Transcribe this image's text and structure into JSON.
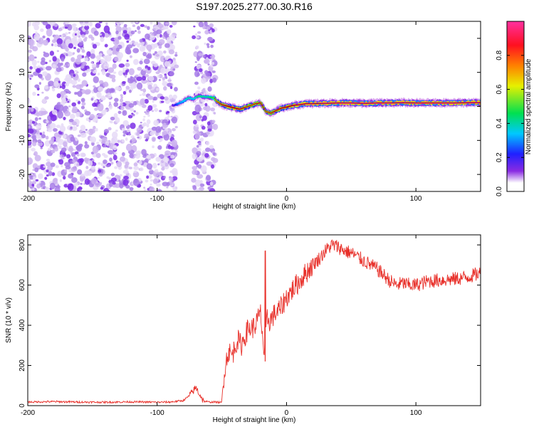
{
  "figure_title": "S197.2025.277.00.30.R16",
  "chart_data": [
    {
      "type": "heatmap",
      "name": "spectrogram",
      "xlabel": "Height of straight line (km)",
      "ylabel": "Frequency (Hz)",
      "xlim": [
        -200,
        150
      ],
      "ylim": [
        -25,
        25
      ],
      "xticks": [
        -200,
        -100,
        0,
        100
      ],
      "yticks": [
        -20,
        -10,
        0,
        10,
        20
      ],
      "xtick_labels": [
        "-200",
        "-100",
        "0",
        "100"
      ],
      "ytick_labels": [
        "-20",
        "-10",
        "0",
        "10",
        "20"
      ],
      "noise_regions_km": [
        [
          -200,
          -85
        ],
        [
          -72,
          -55
        ]
      ],
      "signal_trace": {
        "x": [
          -88,
          -84,
          -80,
          -76,
          -72,
          -68,
          -62,
          -56,
          -54,
          -50,
          -45,
          -40,
          -36,
          -32,
          -28,
          -24,
          -20,
          -16,
          -12,
          -8,
          -4,
          0,
          5,
          10,
          15,
          20,
          30,
          40,
          50,
          60,
          70,
          80,
          90,
          100,
          110,
          120,
          130,
          140,
          150
        ],
        "y": [
          0.2,
          0.8,
          1.5,
          2.5,
          2.2,
          3.0,
          2.8,
          2.5,
          1.5,
          0.5,
          0.0,
          -0.5,
          -0.8,
          -0.3,
          0.2,
          0.8,
          1.0,
          -1.5,
          -2.0,
          -1.2,
          -0.5,
          -0.2,
          0.3,
          0.5,
          0.8,
          0.8,
          0.9,
          1.0,
          1.0,
          0.9,
          1.0,
          1.0,
          1.1,
          1.0,
          1.0,
          1.0,
          1.0,
          1.1,
          1.1
        ],
        "amplitude": [
          0.25,
          0.4,
          0.45,
          0.5,
          0.45,
          0.55,
          0.5,
          0.6,
          0.75,
          0.85,
          0.9,
          0.9,
          0.88,
          0.85,
          0.8,
          0.82,
          0.85,
          0.8,
          0.82,
          0.85,
          0.88,
          0.9,
          0.92,
          0.95,
          0.95,
          0.97,
          0.98,
          0.98,
          0.99,
          0.98,
          0.98,
          0.99,
          0.98,
          0.98,
          0.97,
          0.98,
          0.98,
          0.97,
          0.98
        ]
      },
      "colorbar": {
        "label": "Normalized spectral amplitude",
        "range": [
          0.0,
          1.0
        ],
        "ticks": [
          0.0,
          0.2,
          0.4,
          0.6,
          0.8
        ],
        "tick_labels": [
          "0.0",
          "0.2",
          "0.4",
          "0.6",
          "0.8"
        ],
        "colors": [
          "#ffffff",
          "#e6b8f0",
          "#8a2be2",
          "#2020ff",
          "#00c8ff",
          "#00e050",
          "#e6f000",
          "#ff8000",
          "#ff1020",
          "#ff30a0"
        ]
      }
    },
    {
      "type": "line",
      "name": "snr",
      "xlabel": "Height of straight line (km)",
      "ylabel": "SNR (10 * v/v)",
      "xlim": [
        -200,
        150
      ],
      "ylim": [
        0,
        850
      ],
      "xticks": [
        -200,
        -100,
        0,
        100
      ],
      "yticks": [
        0,
        200,
        400,
        600,
        800
      ],
      "xtick_labels": [
        "-200",
        "-100",
        "0",
        "100"
      ],
      "ytick_labels": [
        "0",
        "200",
        "400",
        "600",
        "800"
      ],
      "color": "#e8302a",
      "series": [
        {
          "name": "SNR",
          "x": [
            -200,
            -180,
            -160,
            -140,
            -120,
            -100,
            -90,
            -80,
            -75,
            -70,
            -67,
            -64,
            -60,
            -55,
            -50,
            -48,
            -45,
            -42,
            -38,
            -35,
            -30,
            -25,
            -20,
            -17,
            -15,
            -13,
            -10,
            -5,
            0,
            5,
            10,
            15,
            20,
            25,
            30,
            35,
            40,
            45,
            50,
            55,
            60,
            65,
            70,
            75,
            80,
            85,
            90,
            95,
            100,
            110,
            120,
            130,
            140,
            150
          ],
          "y": [
            18,
            20,
            18,
            17,
            19,
            17,
            18,
            25,
            50,
            90,
            55,
            22,
            18,
            18,
            15,
            180,
            270,
            250,
            330,
            300,
            380,
            390,
            460,
            230,
            440,
            420,
            450,
            480,
            540,
            580,
            620,
            660,
            700,
            730,
            770,
            800,
            790,
            770,
            760,
            740,
            720,
            700,
            680,
            650,
            620,
            600,
            610,
            600,
            600,
            620,
            625,
            630,
            640,
            660
          ]
        }
      ],
      "spike": {
        "x": -16.5,
        "y": 770
      }
    }
  ]
}
